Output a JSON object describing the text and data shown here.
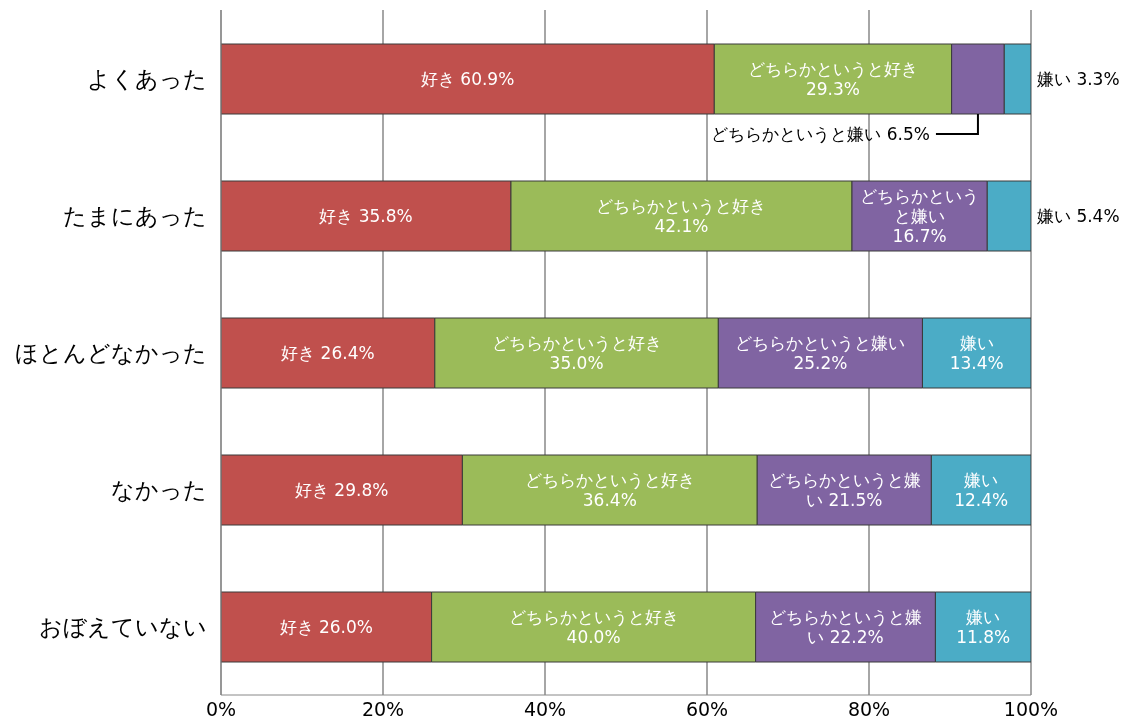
{
  "chart_data": {
    "type": "bar",
    "orientation": "horizontal",
    "stacked": true,
    "categories": [
      "よくあった",
      "たまにあった",
      "ほとんどなかった",
      "なかった",
      "おぼえていない"
    ],
    "series": [
      {
        "color": "#c0504d",
        "values": [
          60.9,
          35.8,
          26.4,
          29.8,
          26.0
        ],
        "value_labels": [
          "好き 60.9%",
          "好き 35.8%",
          "好き 26.4%",
          "好き 29.8%",
          "好き 26.0%"
        ]
      },
      {
        "color": "#9bbb59",
        "values": [
          29.3,
          42.1,
          35.0,
          36.4,
          40.0
        ],
        "value_labels": [
          "どちらかというと好き\n29.3%",
          "どちらかというと好き\n42.1%",
          "どちらかというと好き\n35.0%",
          "どちらかというと好き\n36.4%",
          "どちらかというと好き\n40.0%"
        ]
      },
      {
        "color": "#8064a2",
        "values": [
          6.5,
          16.7,
          25.2,
          21.5,
          22.2
        ],
        "value_labels": [
          "どちらかというと嫌い 6.5%",
          "どちらかというと嫌い\n16.7%",
          "どちらかというと嫌い\n25.2%",
          "どちらかというと嫌い 21.5%",
          "どちらかというと嫌い 22.2%"
        ]
      },
      {
        "color": "#4bacc6",
        "values": [
          3.3,
          5.4,
          13.4,
          12.4,
          11.8
        ],
        "value_labels": [
          "嫌い 3.3%",
          "嫌い 5.4%",
          "嫌い\n13.4%",
          "嫌い\n12.4%",
          "嫌い\n11.8%"
        ]
      }
    ],
    "xlim": [
      0,
      100
    ],
    "xticks": [
      {
        "value": 0,
        "label": "0%"
      },
      {
        "value": 20,
        "label": "20%"
      },
      {
        "value": 40,
        "label": "40%"
      },
      {
        "value": 60,
        "label": "60%"
      },
      {
        "value": 80,
        "label": "80%"
      },
      {
        "value": 100,
        "label": "100%"
      }
    ],
    "grid": "x",
    "legend": false
  }
}
